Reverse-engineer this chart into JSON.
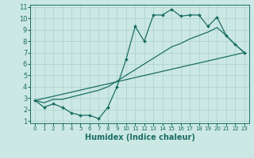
{
  "xlabel": "Humidex (Indice chaleur)",
  "bg_color": "#cce8e4",
  "grid_color": "#afd4cf",
  "line_color": "#1a6e64",
  "xlim": [
    -0.5,
    23.5
  ],
  "ylim": [
    0.8,
    11.2
  ],
  "xticks": [
    0,
    1,
    2,
    3,
    4,
    5,
    6,
    7,
    8,
    9,
    10,
    11,
    12,
    13,
    14,
    15,
    16,
    17,
    18,
    19,
    20,
    21,
    22,
    23
  ],
  "yticks": [
    1,
    2,
    3,
    4,
    5,
    6,
    7,
    8,
    9,
    10,
    11
  ],
  "line1_x": [
    0,
    1,
    2,
    3,
    4,
    5,
    6,
    7,
    8,
    9,
    10,
    11,
    12,
    13,
    14,
    15,
    16,
    17,
    18,
    19,
    20,
    21,
    22,
    23
  ],
  "line1_y": [
    2.8,
    2.2,
    2.5,
    2.2,
    1.7,
    1.5,
    1.5,
    1.2,
    2.2,
    4.0,
    6.4,
    9.3,
    8.0,
    10.3,
    10.3,
    10.8,
    10.2,
    10.3,
    10.3,
    9.3,
    10.1,
    8.5,
    7.7,
    7.0
  ],
  "line2_x": [
    0,
    23
  ],
  "line2_y": [
    2.8,
    7.0
  ],
  "line3_x": [
    0,
    1,
    2,
    3,
    4,
    5,
    6,
    7,
    8,
    9,
    10,
    11,
    12,
    13,
    14,
    15,
    16,
    17,
    18,
    19,
    20,
    21,
    22,
    23
  ],
  "line3_y": [
    2.8,
    2.6,
    2.9,
    2.9,
    3.1,
    3.3,
    3.5,
    3.7,
    4.0,
    4.5,
    5.0,
    5.5,
    6.0,
    6.5,
    7.0,
    7.5,
    7.8,
    8.2,
    8.5,
    8.8,
    9.2,
    8.5,
    7.7,
    7.0
  ]
}
